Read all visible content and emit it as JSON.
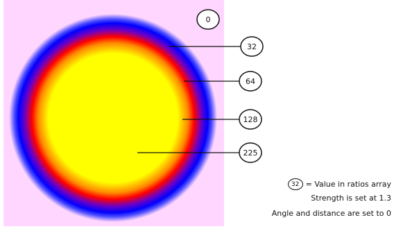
{
  "colors": {
    "background": "#ffd6ff",
    "ramp": [
      "#ffff00",
      "#ffff00",
      "#ff8000",
      "#ff0000",
      "#0000ff",
      "#0000ff",
      "#ffd6ff"
    ]
  },
  "gradient": {
    "strength": 1.3,
    "angle": 0,
    "distance": 0
  },
  "callouts": [
    {
      "value": "0"
    },
    {
      "value": "32"
    },
    {
      "value": "64"
    },
    {
      "value": "128"
    },
    {
      "value": "225"
    }
  ],
  "legend": {
    "badge": "32",
    "text": "= Value in ratios array",
    "strength_text": "Strength is set at 1.3",
    "angle_text": "Angle and distance are set to 0"
  }
}
